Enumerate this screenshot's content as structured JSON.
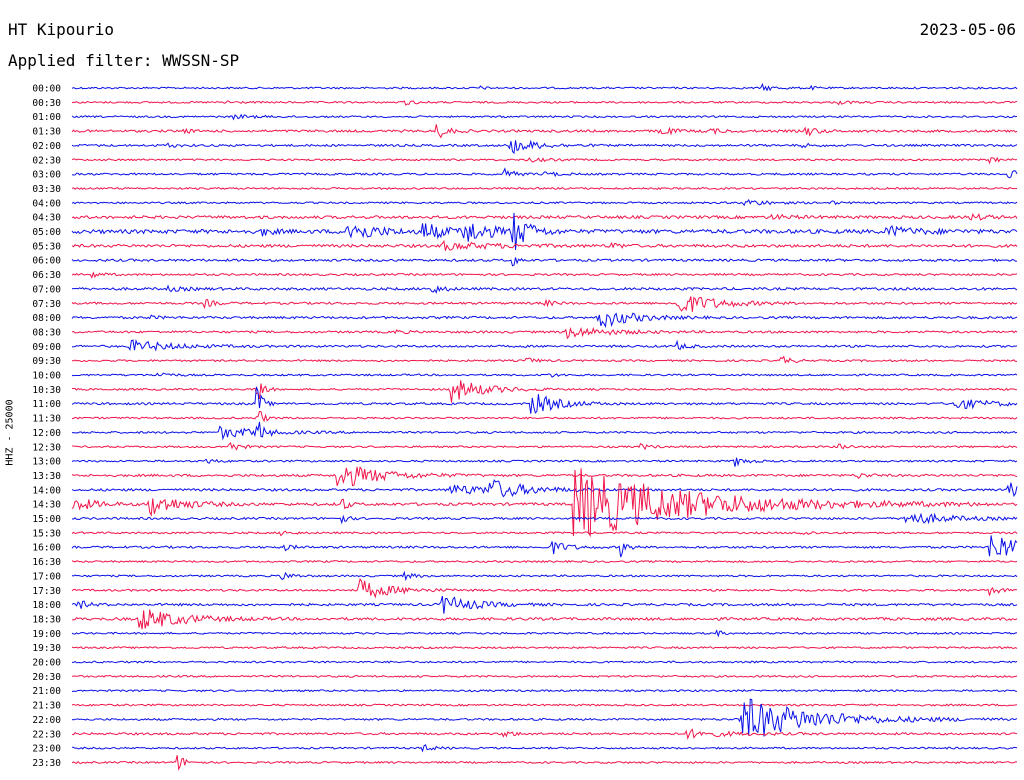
{
  "header": {
    "station": "HT Kipourio",
    "filter": "Applied filter: WWSSN-SP",
    "date": "2023-05-06"
  },
  "side_label": "HHZ - 25000",
  "colors": {
    "blue": "#0a10e8",
    "red": "#f0154a",
    "background": "#ffffff",
    "text": "#000000"
  },
  "chart_data": {
    "type": "line",
    "title": "HT Kipourio",
    "ylabel": "HHZ - 25000",
    "trace_duration_minutes": 30,
    "rows": [
      {
        "label": "00:00",
        "color": "blue",
        "noise": 1.0,
        "events": [
          {
            "t": 0.73,
            "a": 3,
            "d": 0.012
          },
          {
            "t": 0.43,
            "a": 2,
            "d": 0.006
          },
          {
            "t": 0.78,
            "a": 2,
            "d": 0.006
          }
        ]
      },
      {
        "label": "00:30",
        "color": "red",
        "noise": 1.0,
        "events": [
          {
            "t": 0.35,
            "a": 3,
            "d": 0.01
          },
          {
            "t": 0.16,
            "a": 2,
            "d": 0.01
          },
          {
            "t": 0.81,
            "a": 2,
            "d": 0.01
          }
        ]
      },
      {
        "label": "01:00",
        "color": "blue",
        "noise": 1.0,
        "events": [
          {
            "t": 0.17,
            "a": 2,
            "d": 0.02
          }
        ]
      },
      {
        "label": "01:30",
        "color": "red",
        "noise": 1.3,
        "events": [
          {
            "t": 0.385,
            "a": 9,
            "d": 0.01
          },
          {
            "t": 0.62,
            "a": 5,
            "d": 0.012
          },
          {
            "t": 0.67,
            "a": 3,
            "d": 0.015
          },
          {
            "t": 0.775,
            "a": 6,
            "d": 0.01
          },
          {
            "t": 0.115,
            "a": 2,
            "d": 0.01
          }
        ]
      },
      {
        "label": "02:00",
        "color": "blue",
        "noise": 1.2,
        "events": [
          {
            "t": 0.46,
            "a": 9,
            "d": 0.025
          },
          {
            "t": 0.1,
            "a": 2,
            "d": 0.01
          },
          {
            "t": 0.77,
            "a": 2,
            "d": 0.01
          }
        ]
      },
      {
        "label": "02:30",
        "color": "red",
        "noise": 1.0,
        "events": [
          {
            "t": 0.48,
            "a": 2,
            "d": 0.02
          },
          {
            "t": 0.97,
            "a": 3,
            "d": 0.01
          }
        ]
      },
      {
        "label": "03:00",
        "color": "blue",
        "noise": 1.1,
        "events": [
          {
            "t": 0.455,
            "a": 6,
            "d": 0.01
          },
          {
            "t": 0.5,
            "a": 3,
            "d": 0.01
          },
          {
            "t": 0.99,
            "a": 5,
            "d": 0.01
          }
        ]
      },
      {
        "label": "03:30",
        "color": "red",
        "noise": 1.0,
        "events": []
      },
      {
        "label": "04:00",
        "color": "blue",
        "noise": 1.0,
        "events": [
          {
            "t": 0.71,
            "a": 4,
            "d": 0.02
          },
          {
            "t": 0.8,
            "a": 2,
            "d": 0.01
          }
        ]
      },
      {
        "label": "04:30",
        "color": "red",
        "noise": 1.6,
        "events": [
          {
            "t": 0.74,
            "a": 2,
            "d": 0.02
          },
          {
            "t": 0.95,
            "a": 3,
            "d": 0.015
          }
        ]
      },
      {
        "label": "05:00",
        "color": "blue",
        "noise": 2.2,
        "events": [
          {
            "t": 0.29,
            "a": 12,
            "d": 0.025
          },
          {
            "t": 0.37,
            "a": 10,
            "d": 0.02
          },
          {
            "t": 0.41,
            "a": 14,
            "d": 0.025
          },
          {
            "t": 0.465,
            "a": 22,
            "d": 0.015
          },
          {
            "t": 0.2,
            "a": 4,
            "d": 0.01
          },
          {
            "t": 0.86,
            "a": 5,
            "d": 0.03
          }
        ]
      },
      {
        "label": "05:30",
        "color": "red",
        "noise": 1.6,
        "events": [
          {
            "t": 0.39,
            "a": 4,
            "d": 0.05
          },
          {
            "t": 0.57,
            "a": 3,
            "d": 0.01
          }
        ]
      },
      {
        "label": "06:00",
        "color": "blue",
        "noise": 1.3,
        "events": [
          {
            "t": 0.465,
            "a": 8,
            "d": 0.005
          }
        ]
      },
      {
        "label": "06:30",
        "color": "red",
        "noise": 1.1,
        "events": [
          {
            "t": 0.02,
            "a": 3,
            "d": 0.01
          }
        ]
      },
      {
        "label": "07:00",
        "color": "blue",
        "noise": 1.4,
        "events": [
          {
            "t": 0.38,
            "a": 5,
            "d": 0.01
          },
          {
            "t": 0.1,
            "a": 2,
            "d": 0.02
          }
        ]
      },
      {
        "label": "07:30",
        "color": "red",
        "noise": 1.2,
        "events": [
          {
            "t": 0.64,
            "a": 12,
            "d": 0.035
          },
          {
            "t": 0.14,
            "a": 4,
            "d": 0.01
          },
          {
            "t": 0.5,
            "a": 3,
            "d": 0.01
          }
        ]
      },
      {
        "label": "08:00",
        "color": "blue",
        "noise": 1.3,
        "events": [
          {
            "t": 0.555,
            "a": 12,
            "d": 0.03
          },
          {
            "t": 0.08,
            "a": 2,
            "d": 0.01
          }
        ]
      },
      {
        "label": "08:30",
        "color": "red",
        "noise": 1.2,
        "events": [
          {
            "t": 0.52,
            "a": 6,
            "d": 0.04
          },
          {
            "t": 0.34,
            "a": 2,
            "d": 0.01
          }
        ]
      },
      {
        "label": "09:00",
        "color": "blue",
        "noise": 1.2,
        "events": [
          {
            "t": 0.06,
            "a": 6,
            "d": 0.04
          },
          {
            "t": 0.64,
            "a": 4,
            "d": 0.01
          }
        ]
      },
      {
        "label": "09:30",
        "color": "red",
        "noise": 1.0,
        "events": [
          {
            "t": 0.75,
            "a": 5,
            "d": 0.01
          },
          {
            "t": 0.48,
            "a": 3,
            "d": 0.01
          }
        ]
      },
      {
        "label": "10:00",
        "color": "blue",
        "noise": 1.0,
        "events": [
          {
            "t": 0.09,
            "a": 4,
            "d": 0.01
          },
          {
            "t": 0.5,
            "a": 3,
            "d": 0.01
          }
        ]
      },
      {
        "label": "10:30",
        "color": "red",
        "noise": 1.0,
        "events": [
          {
            "t": 0.4,
            "a": 13,
            "d": 0.03
          },
          {
            "t": 0.195,
            "a": 30,
            "d": 0.005
          }
        ]
      },
      {
        "label": "11:00",
        "color": "blue",
        "noise": 1.2,
        "events": [
          {
            "t": 0.485,
            "a": 12,
            "d": 0.025
          },
          {
            "t": 0.195,
            "a": 22,
            "d": 0.005
          },
          {
            "t": 0.93,
            "a": 6,
            "d": 0.035
          }
        ]
      },
      {
        "label": "11:30",
        "color": "red",
        "noise": 1.0,
        "events": [
          {
            "t": 0.195,
            "a": 18,
            "d": 0.005
          }
        ]
      },
      {
        "label": "12:00",
        "color": "blue",
        "noise": 1.1,
        "events": [
          {
            "t": 0.155,
            "a": 6,
            "d": 0.04
          },
          {
            "t": 0.195,
            "a": 18,
            "d": 0.005
          }
        ]
      },
      {
        "label": "12:30",
        "color": "red",
        "noise": 1.0,
        "events": [
          {
            "t": 0.165,
            "a": 6,
            "d": 0.01
          },
          {
            "t": 0.6,
            "a": 3,
            "d": 0.01
          },
          {
            "t": 0.81,
            "a": 3,
            "d": 0.01
          }
        ]
      },
      {
        "label": "13:00",
        "color": "blue",
        "noise": 1.0,
        "events": [
          {
            "t": 0.7,
            "a": 6,
            "d": 0.01
          },
          {
            "t": 0.14,
            "a": 3,
            "d": 0.01
          }
        ]
      },
      {
        "label": "13:30",
        "color": "red",
        "noise": 1.3,
        "events": [
          {
            "t": 0.28,
            "a": 14,
            "d": 0.04
          },
          {
            "t": 0.83,
            "a": 3,
            "d": 0.01
          }
        ]
      },
      {
        "label": "14:00",
        "color": "blue",
        "noise": 1.3,
        "events": [
          {
            "t": 0.4,
            "a": 5,
            "d": 0.05
          },
          {
            "t": 0.44,
            "a": 10,
            "d": 0.03
          },
          {
            "t": 0.99,
            "a": 7,
            "d": 0.03
          }
        ]
      },
      {
        "label": "14:30",
        "color": "red",
        "noise": 1.5,
        "events": [
          {
            "t": 0.0,
            "a": 8,
            "d": 0.02
          },
          {
            "t": 0.08,
            "a": 12,
            "d": 0.03
          },
          {
            "t": 0.53,
            "a": 38,
            "d": 0.11
          },
          {
            "t": 0.285,
            "a": 10,
            "d": 0.005
          }
        ]
      },
      {
        "label": "15:00",
        "color": "blue",
        "noise": 1.2,
        "events": [
          {
            "t": 0.88,
            "a": 7,
            "d": 0.04
          },
          {
            "t": 0.285,
            "a": 6,
            "d": 0.005
          }
        ]
      },
      {
        "label": "15:30",
        "color": "red",
        "noise": 1.0,
        "events": [
          {
            "t": 0.22,
            "a": 3,
            "d": 0.01
          },
          {
            "t": 0.77,
            "a": 3,
            "d": 0.01
          }
        ]
      },
      {
        "label": "16:00",
        "color": "blue",
        "noise": 1.2,
        "events": [
          {
            "t": 0.505,
            "a": 8,
            "d": 0.015
          },
          {
            "t": 0.58,
            "a": 10,
            "d": 0.006
          },
          {
            "t": 0.97,
            "a": 17,
            "d": 0.03
          },
          {
            "t": 0.22,
            "a": 4,
            "d": 0.01
          }
        ]
      },
      {
        "label": "16:30",
        "color": "red",
        "noise": 1.0,
        "events": []
      },
      {
        "label": "17:00",
        "color": "blue",
        "noise": 1.0,
        "events": [
          {
            "t": 0.22,
            "a": 5,
            "d": 0.01
          },
          {
            "t": 0.35,
            "a": 4,
            "d": 0.01
          }
        ]
      },
      {
        "label": "17:30",
        "color": "red",
        "noise": 1.1,
        "events": [
          {
            "t": 0.3,
            "a": 12,
            "d": 0.03
          },
          {
            "t": 0.97,
            "a": 5,
            "d": 0.01
          }
        ]
      },
      {
        "label": "18:00",
        "color": "blue",
        "noise": 1.3,
        "events": [
          {
            "t": 0.39,
            "a": 10,
            "d": 0.03
          },
          {
            "t": 0.005,
            "a": 5,
            "d": 0.01
          }
        ]
      },
      {
        "label": "18:30",
        "color": "red",
        "noise": 1.5,
        "events": [
          {
            "t": 0.07,
            "a": 12,
            "d": 0.04
          }
        ]
      },
      {
        "label": "19:00",
        "color": "blue",
        "noise": 1.0,
        "events": [
          {
            "t": 0.68,
            "a": 4,
            "d": 0.006
          }
        ]
      },
      {
        "label": "19:30",
        "color": "red",
        "noise": 1.0,
        "events": []
      },
      {
        "label": "20:00",
        "color": "blue",
        "noise": 1.0,
        "events": []
      },
      {
        "label": "20:30",
        "color": "red",
        "noise": 1.0,
        "events": []
      },
      {
        "label": "21:00",
        "color": "blue",
        "noise": 1.0,
        "events": []
      },
      {
        "label": "21:30",
        "color": "red",
        "noise": 1.0,
        "events": []
      },
      {
        "label": "22:00",
        "color": "blue",
        "noise": 1.1,
        "events": [
          {
            "t": 0.705,
            "a": 24,
            "d": 0.07
          }
        ]
      },
      {
        "label": "22:30",
        "color": "red",
        "noise": 1.2,
        "events": [
          {
            "t": 0.455,
            "a": 4,
            "d": 0.01
          },
          {
            "t": 0.65,
            "a": 4,
            "d": 0.04
          }
        ]
      },
      {
        "label": "23:00",
        "color": "blue",
        "noise": 1.0,
        "events": [
          {
            "t": 0.37,
            "a": 4,
            "d": 0.01
          }
        ]
      },
      {
        "label": "23:30",
        "color": "red",
        "noise": 1.0,
        "events": [
          {
            "t": 0.11,
            "a": 10,
            "d": 0.008
          }
        ]
      }
    ]
  }
}
